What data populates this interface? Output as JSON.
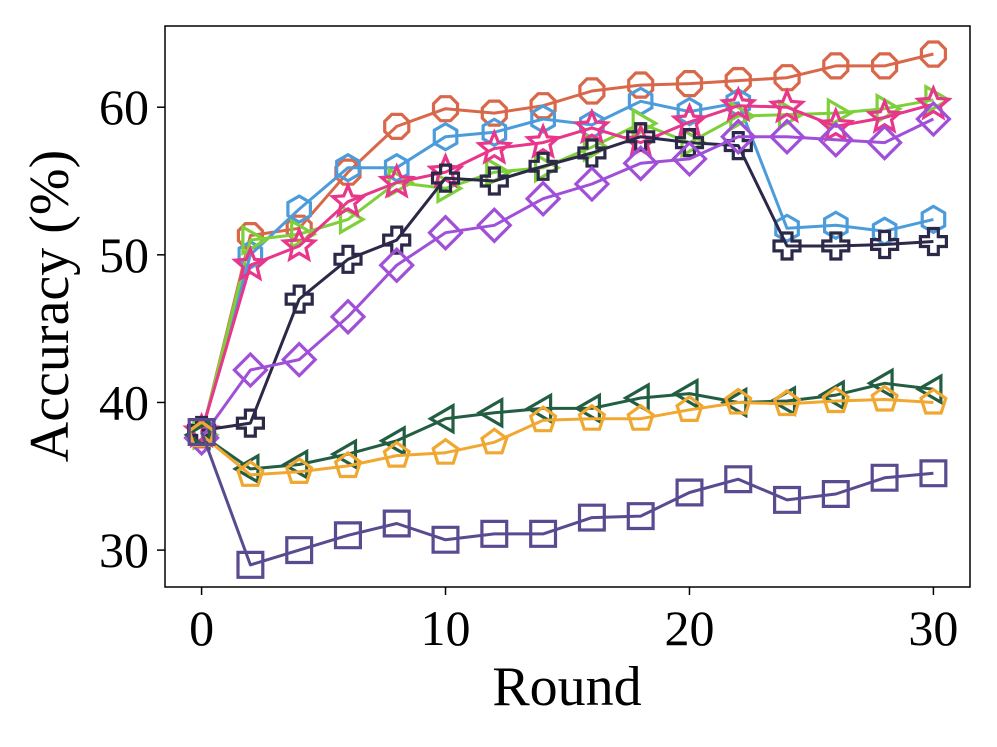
{
  "chart_data": {
    "type": "line",
    "title": "",
    "xlabel": "Round",
    "ylabel": "Accuracy (%)",
    "xlim": [
      -1.5,
      31.5
    ],
    "ylim": [
      27.5,
      65.5
    ],
    "xticks": [
      0,
      10,
      20,
      30
    ],
    "yticks": [
      30,
      40,
      50,
      60
    ],
    "grid": false,
    "legend": "none",
    "x": [
      0,
      2,
      4,
      6,
      8,
      10,
      12,
      14,
      16,
      18,
      20,
      22,
      24,
      26,
      28,
      30
    ],
    "series": [
      {
        "name": "hexagon-orange",
        "color": "#D9674A",
        "marker": "octagon",
        "values": [
          37.8,
          51.3,
          51.8,
          55.6,
          58.7,
          59.9,
          59.6,
          60.1,
          61.1,
          61.5,
          61.6,
          61.8,
          62.0,
          62.8,
          62.8,
          63.6
        ]
      },
      {
        "name": "hexagon-blue",
        "color": "#4C9CDB",
        "marker": "hexagon",
        "values": [
          38.0,
          50.0,
          53.1,
          55.9,
          55.9,
          58.0,
          58.3,
          59.2,
          58.8,
          60.4,
          59.7,
          60.3,
          51.8,
          52.0,
          51.6,
          52.4
        ]
      },
      {
        "name": "triangle-right-green",
        "color": "#7ED03A",
        "marker": "triangle-right",
        "values": [
          37.8,
          51.0,
          51.4,
          52.4,
          54.9,
          54.5,
          55.6,
          55.9,
          57.3,
          58.9,
          57.6,
          59.4,
          59.5,
          59.6,
          59.9,
          60.5
        ]
      },
      {
        "name": "star-pink",
        "color": "#E8368A",
        "marker": "star",
        "values": [
          38.0,
          49.3,
          50.6,
          53.6,
          54.9,
          55.6,
          57.2,
          57.6,
          58.6,
          57.6,
          59.0,
          60.1,
          60.0,
          58.7,
          59.3,
          60.2
        ]
      },
      {
        "name": "cross-navy",
        "color": "#2B2848",
        "marker": "cross",
        "values": [
          38.1,
          38.6,
          47.0,
          49.7,
          51.0,
          55.2,
          55.0,
          56.0,
          56.9,
          58.0,
          57.6,
          57.4,
          50.6,
          50.6,
          50.7,
          50.9
        ]
      },
      {
        "name": "diamond-purple",
        "color": "#A050D8",
        "marker": "diamond",
        "values": [
          37.6,
          42.2,
          42.9,
          45.8,
          49.3,
          51.5,
          52.0,
          53.8,
          54.8,
          56.2,
          56.5,
          58.0,
          58.0,
          57.8,
          57.6,
          59.2
        ]
      },
      {
        "name": "triangle-left-darkgreen",
        "color": "#235E43",
        "marker": "triangle-left",
        "values": [
          37.8,
          35.5,
          35.8,
          36.5,
          37.4,
          38.9,
          39.3,
          39.6,
          39.6,
          40.3,
          40.6,
          40.0,
          40.1,
          40.5,
          41.3,
          40.9
        ]
      },
      {
        "name": "pentagon-gold",
        "color": "#F0A830",
        "marker": "pentagon",
        "values": [
          37.8,
          35.1,
          35.3,
          35.7,
          36.4,
          36.6,
          37.3,
          38.8,
          38.9,
          38.9,
          39.5,
          40.0,
          39.9,
          40.1,
          40.2,
          40.0
        ]
      },
      {
        "name": "square-indigo",
        "color": "#5A4A90",
        "marker": "square",
        "values": [
          38.0,
          29.0,
          30.0,
          31.0,
          31.8,
          30.7,
          31.1,
          31.1,
          32.2,
          32.3,
          33.9,
          34.8,
          33.4,
          33.8,
          34.9,
          35.2
        ]
      }
    ]
  }
}
